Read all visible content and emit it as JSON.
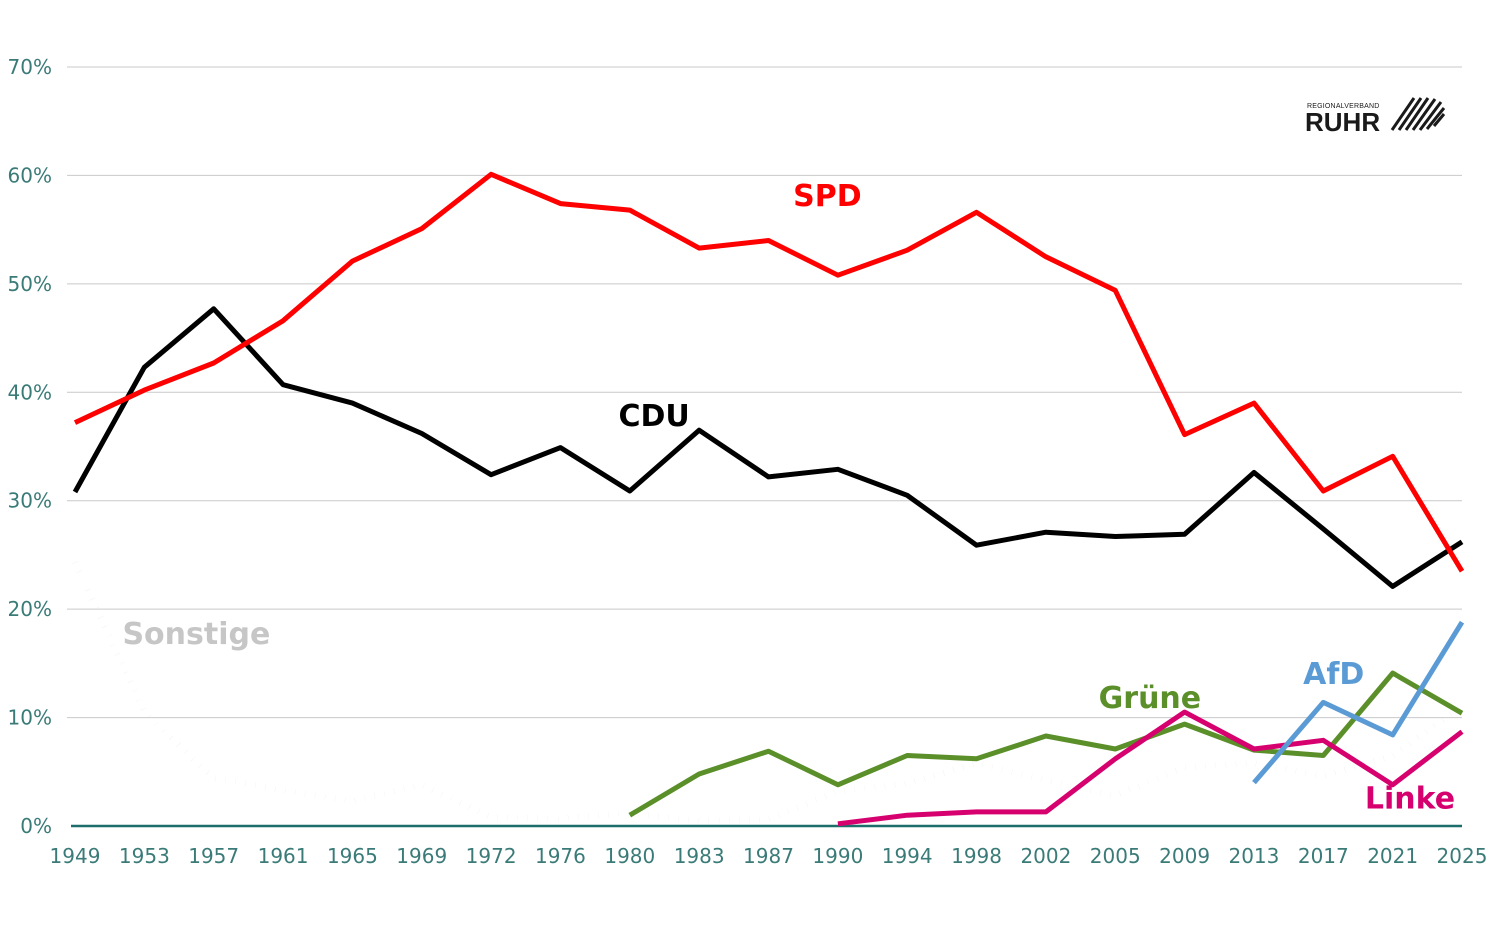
{
  "chart_data": {
    "type": "line",
    "title": "",
    "xlabel": "",
    "ylabel": "",
    "ylim": [
      0,
      70
    ],
    "y_ticks": [
      "0%",
      "10%",
      "20%",
      "30%",
      "40%",
      "50%",
      "60%",
      "70%"
    ],
    "y_tick_values": [
      0,
      10,
      20,
      30,
      40,
      50,
      60,
      70
    ],
    "categories": [
      "1949",
      "1953",
      "1957",
      "1961",
      "1965",
      "1969",
      "1972",
      "1976",
      "1980",
      "1983",
      "1987",
      "1990",
      "1994",
      "1998",
      "2002",
      "2005",
      "2009",
      "2013",
      "2017",
      "2021",
      "2025"
    ],
    "grid": true,
    "series": [
      {
        "name": "SPD",
        "label": "SPD",
        "color": "#ff0000",
        "style": "solid",
        "values": [
          37.2,
          40.2,
          42.7,
          46.6,
          52.1,
          55.1,
          60.1,
          57.4,
          56.8,
          53.3,
          54.0,
          50.8,
          53.1,
          56.6,
          52.5,
          49.4,
          36.1,
          39.0,
          30.9,
          34.1,
          23.5
        ]
      },
      {
        "name": "CDU",
        "label": "CDU",
        "color": "#000000",
        "style": "solid",
        "values": [
          30.8,
          42.3,
          47.7,
          40.7,
          39.0,
          36.2,
          32.4,
          34.9,
          30.9,
          36.5,
          32.2,
          32.9,
          30.5,
          25.9,
          27.1,
          26.7,
          26.9,
          32.6,
          27.4,
          22.1,
          26.2
        ]
      },
      {
        "name": "Sonstige",
        "label": "Sonstige",
        "color": "#c8c8c8",
        "style": "dotted",
        "values": [
          24.3,
          10.5,
          4.4,
          3.3,
          2.3,
          3.8,
          0.8,
          0.7,
          1.2,
          0.5,
          0.6,
          3.2,
          3.9,
          5.8,
          4.2,
          2.8,
          5.4,
          5.8,
          4.6,
          6.5,
          11.0
        ]
      },
      {
        "name": "Grüne",
        "label": "Grüne",
        "color": "#5a8f29",
        "style": "solid",
        "values": [
          null,
          null,
          null,
          null,
          null,
          null,
          null,
          null,
          1.0,
          4.8,
          6.9,
          3.8,
          6.5,
          6.2,
          8.3,
          7.1,
          9.4,
          7.0,
          6.5,
          14.1,
          10.4
        ]
      },
      {
        "name": "Linke",
        "label": "Linke",
        "color": "#d6006f",
        "style": "solid",
        "values": [
          null,
          null,
          null,
          null,
          null,
          null,
          null,
          null,
          null,
          null,
          null,
          0.2,
          1.0,
          1.3,
          1.3,
          6.2,
          10.5,
          7.1,
          7.9,
          3.8,
          8.7
        ]
      },
      {
        "name": "AfD",
        "label": "AfD",
        "color": "#5b9bd5",
        "style": "solid",
        "values": [
          null,
          null,
          null,
          null,
          null,
          null,
          null,
          null,
          null,
          null,
          null,
          null,
          null,
          null,
          null,
          null,
          null,
          4.0,
          11.4,
          8.4,
          18.8
        ]
      }
    ]
  },
  "logo": {
    "small_text": "REGIONALVERBAND",
    "big_text": "RUHR"
  }
}
